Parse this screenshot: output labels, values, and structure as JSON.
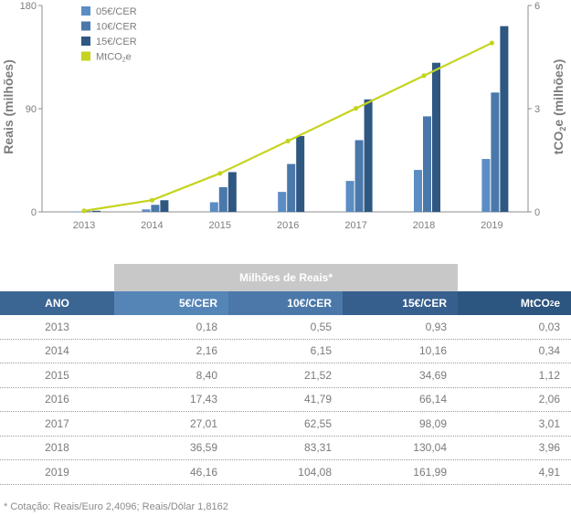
{
  "chart_data": {
    "type": "bar",
    "categories": [
      "2013",
      "2014",
      "2015",
      "2016",
      "2017",
      "2018",
      "2019"
    ],
    "series": [
      {
        "name": "05€/CER",
        "type": "bar",
        "axis": "left",
        "color": "#5b8dc4",
        "values": [
          0.18,
          2.16,
          8.4,
          17.43,
          27.01,
          36.59,
          46.16
        ]
      },
      {
        "name": "10€/CER",
        "type": "bar",
        "axis": "left",
        "color": "#4a78ab",
        "values": [
          0.55,
          6.15,
          21.52,
          41.79,
          62.55,
          83.31,
          104.08
        ]
      },
      {
        "name": "15€/CER",
        "type": "bar",
        "axis": "left",
        "color": "#2e5782",
        "values": [
          0.93,
          10.16,
          34.69,
          66.14,
          98.09,
          130.04,
          161.99
        ]
      },
      {
        "name": "MtCO2e",
        "type": "line",
        "axis": "right",
        "color": "#c5d41e",
        "values": [
          0.03,
          0.34,
          1.12,
          2.06,
          3.01,
          3.96,
          4.91
        ]
      }
    ],
    "ylabel": "Reais (milhões)",
    "y2label": "tCO2e (milhões)",
    "ylim": [
      0,
      180
    ],
    "y2lim": [
      0,
      6
    ],
    "yticks": [
      "0",
      "90",
      "180"
    ],
    "y2ticks": [
      "0",
      "3",
      "6"
    ],
    "legend": "top-left",
    "grid": false
  },
  "table": {
    "group_header": "Milhões de Reais*",
    "headers": [
      "ANO",
      "5€/CER",
      "10€/CER",
      "15€/CER",
      "MtCO2e"
    ],
    "rows": [
      [
        "2013",
        "0,18",
        "0,55",
        "0,93",
        "0,03"
      ],
      [
        "2014",
        "2,16",
        "6,15",
        "10,16",
        "0,34"
      ],
      [
        "2015",
        "8,40",
        "21,52",
        "34,69",
        "1,12"
      ],
      [
        "2016",
        "17,43",
        "41,79",
        "66,14",
        "2,06"
      ],
      [
        "2017",
        "27,01",
        "62,55",
        "98,09",
        "3,01"
      ],
      [
        "2018",
        "36,59",
        "83,31",
        "130,04",
        "3,96"
      ],
      [
        "2019",
        "46,16",
        "104,08",
        "161,99",
        "4,91"
      ]
    ]
  },
  "footnote": "*  Cotação: Reais/Euro 2,4096; Reais/Dólar 1,8162"
}
